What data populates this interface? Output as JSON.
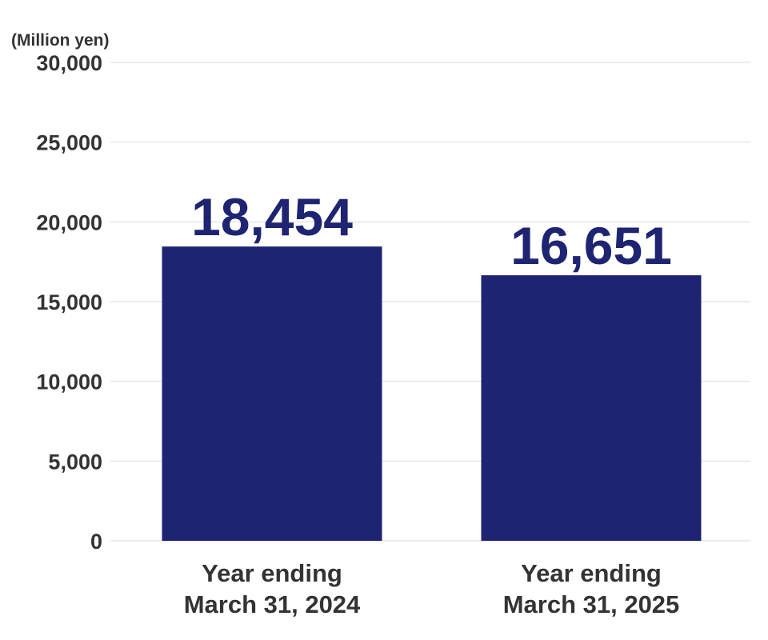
{
  "chart_data": {
    "type": "bar",
    "unit_label": "(Million yen)",
    "categories": [
      [
        "Year ending",
        "March 31, 2024"
      ],
      [
        "Year ending",
        "March 31, 2025"
      ]
    ],
    "values": [
      18454,
      16651
    ],
    "value_labels": [
      "18,454",
      "16,651"
    ],
    "ylim": [
      0,
      30000
    ],
    "yticks": [
      0,
      5000,
      10000,
      15000,
      20000,
      25000,
      30000
    ],
    "ytick_labels": [
      "0",
      "5,000",
      "10,000",
      "15,000",
      "20,000",
      "25,000",
      "30,000"
    ],
    "grid": true,
    "legend": "none",
    "colors": {
      "bar": "#1e2472",
      "value_label": "#1e2472",
      "text": "#333333",
      "grid": "#e6e6e6"
    }
  }
}
